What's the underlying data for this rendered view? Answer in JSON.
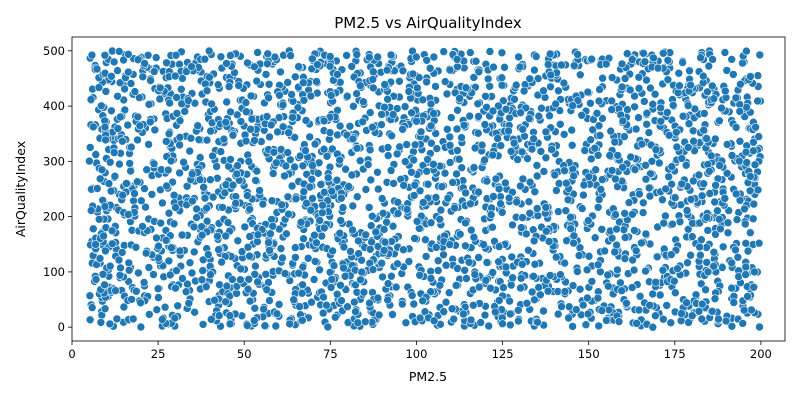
{
  "chart_data": {
    "type": "scatter",
    "title": "PM2.5 vs AirQualityIndex",
    "xlabel": "PM2.5",
    "ylabel": "AirQualityIndex",
    "xlim": [
      0,
      207
    ],
    "ylim": [
      -25,
      525
    ],
    "xticks": [
      0,
      25,
      50,
      75,
      100,
      125,
      150,
      175,
      200
    ],
    "yticks": [
      0,
      100,
      200,
      300,
      400,
      500
    ],
    "grid": false,
    "point_color": "#1f77b4",
    "x_range": [
      5,
      200
    ],
    "y_range": [
      0,
      500
    ],
    "point_count": 3000
  }
}
